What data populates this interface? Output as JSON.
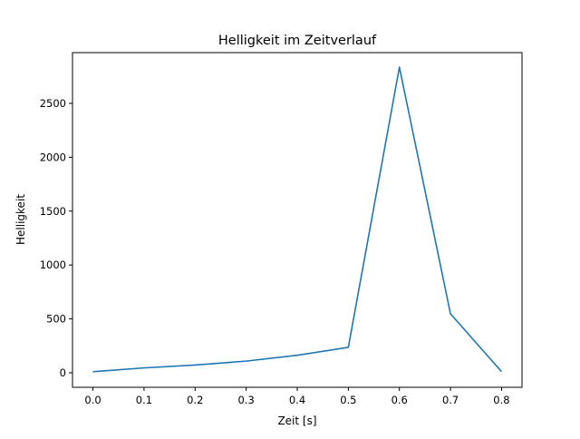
{
  "chart_data": {
    "type": "line",
    "title": "Helligkeit im Zeitverlauf",
    "xlabel": "Zeit [s]",
    "ylabel": "Helligkeit",
    "xlim": [
      -0.04,
      0.84
    ],
    "ylim": [
      -135,
      2971
    ],
    "xticks": [
      0.0,
      0.1,
      0.2,
      0.3,
      0.4,
      0.5,
      0.6,
      0.7,
      0.8
    ],
    "xtick_labels": [
      "0.0",
      "0.1",
      "0.2",
      "0.3",
      "0.4",
      "0.5",
      "0.6",
      "0.7",
      "0.8"
    ],
    "yticks": [
      0,
      500,
      1000,
      1500,
      2000,
      2500
    ],
    "ytick_labels": [
      "0",
      "500",
      "1000",
      "1500",
      "2000",
      "2500"
    ],
    "grid": false,
    "series": [
      {
        "name": "Helligkeit",
        "color": "#1f77b4",
        "x": [
          0.0,
          0.1,
          0.2,
          0.3,
          0.4,
          0.5,
          0.6,
          0.7,
          0.8
        ],
        "y": [
          10,
          45,
          72,
          108,
          162,
          236,
          2836,
          547,
          10
        ]
      }
    ]
  }
}
